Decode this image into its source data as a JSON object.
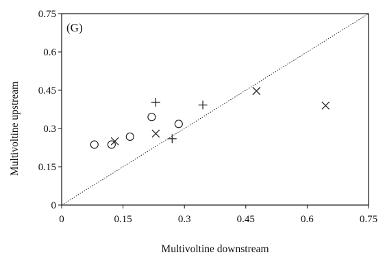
{
  "chart_data": {
    "type": "scatter",
    "panel_label": "(G)",
    "xlabel": "Multivoltine downstream",
    "ylabel": "Multivoltine upstream",
    "xlim": [
      0,
      0.75
    ],
    "ylim": [
      0,
      0.75
    ],
    "x_ticks": [
      "0",
      "0.15",
      "0.3",
      "0.45",
      "0.6",
      "0.75"
    ],
    "y_ticks": [
      "0",
      "0.15",
      "0.3",
      "0.45",
      "0.6",
      "0.75"
    ],
    "reference_line": {
      "from": [
        0,
        0
      ],
      "to": [
        0.75,
        0.75
      ],
      "style": "dotted"
    },
    "grid": false,
    "legend": "none",
    "series": [
      {
        "marker": "circle",
        "points": [
          [
            0.08,
            0.237
          ],
          [
            0.122,
            0.237
          ],
          [
            0.167,
            0.268
          ],
          [
            0.22,
            0.345
          ],
          [
            0.286,
            0.318
          ]
        ]
      },
      {
        "marker": "x",
        "points": [
          [
            0.13,
            0.25
          ],
          [
            0.23,
            0.28
          ],
          [
            0.476,
            0.447
          ],
          [
            0.645,
            0.39
          ]
        ]
      },
      {
        "marker": "plus",
        "points": [
          [
            0.23,
            0.403
          ],
          [
            0.27,
            0.26
          ],
          [
            0.345,
            0.392
          ]
        ]
      }
    ]
  }
}
